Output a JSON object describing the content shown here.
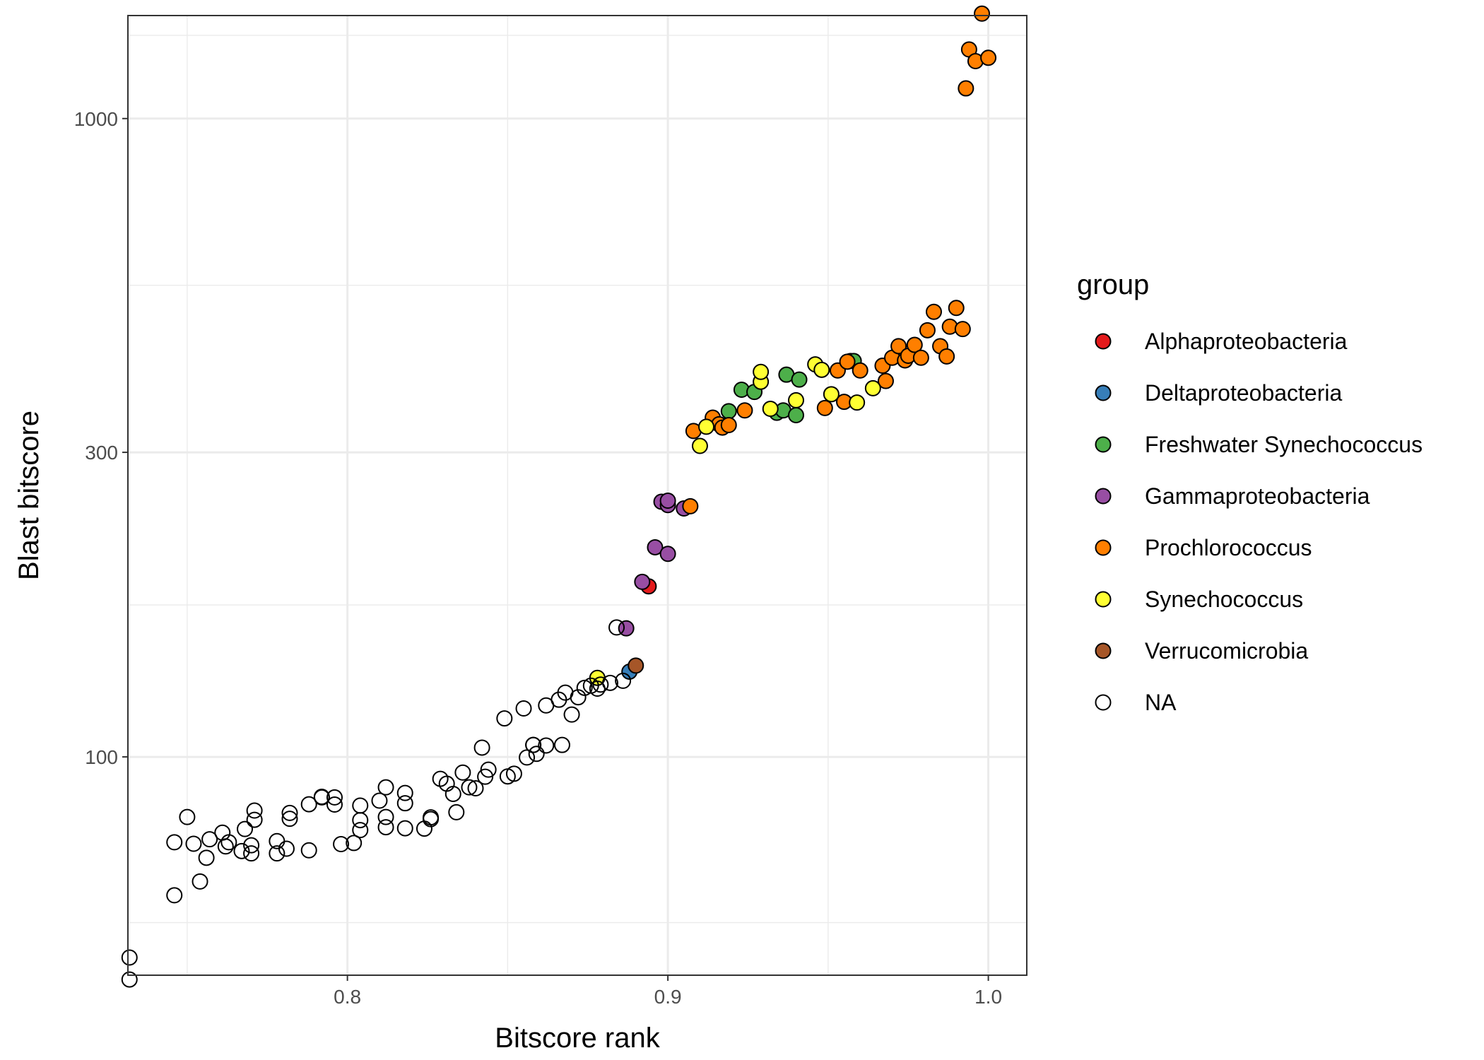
{
  "chart_data": {
    "type": "scatter",
    "title": "",
    "xlabel": "Bitscore rank",
    "ylabel": "Blast bitscore",
    "xlim": [
      0.7315,
      1.012
    ],
    "ylim": [
      45.5,
      1450
    ],
    "y_scale": "log",
    "grid": true,
    "legend_position": "right",
    "legend_title": "group",
    "x_ticks": [
      {
        "value": 0.8,
        "label": "0.8"
      },
      {
        "value": 0.9,
        "label": "0.9"
      },
      {
        "value": 1.0,
        "label": "1.0"
      }
    ],
    "y_ticks": [
      {
        "value": 100,
        "label": "100"
      },
      {
        "value": 300,
        "label": "300"
      },
      {
        "value": 1000,
        "label": "1000"
      }
    ],
    "x_minor_grid": [
      0.75,
      0.85,
      0.95
    ],
    "y_minor_grid": [
      55,
      173,
      548,
      1350
    ],
    "series": [
      {
        "name": "Alphaproteobacteria",
        "color": "#E41A1C",
        "points": [
          [
            0.894,
            185
          ]
        ]
      },
      {
        "name": "Deltaproteobacteria",
        "color": "#377EB8",
        "points": [
          [
            0.888,
            136
          ]
        ]
      },
      {
        "name": "Freshwater Synechococcus",
        "color": "#4DAF4A",
        "points": [
          [
            0.919,
            348
          ],
          [
            0.923,
            376
          ],
          [
            0.927,
            373
          ],
          [
            0.934,
            346
          ],
          [
            0.936,
            349
          ],
          [
            0.937,
            397
          ],
          [
            0.94,
            343
          ],
          [
            0.941,
            390
          ],
          [
            0.957,
            417
          ],
          [
            0.958,
            417
          ]
        ]
      },
      {
        "name": "Gammaproteobacteria",
        "color": "#984EA3",
        "points": [
          [
            0.892,
            188
          ],
          [
            0.896,
            213
          ],
          [
            0.898,
            251
          ],
          [
            0.9,
            208
          ],
          [
            0.9,
            248
          ],
          [
            0.9,
            252
          ],
          [
            0.905,
            245
          ],
          [
            0.887,
            159
          ]
        ]
      },
      {
        "name": "Prochlorococcus",
        "color": "#FF7F00",
        "points": [
          [
            0.907,
            247
          ],
          [
            0.908,
            324
          ],
          [
            0.914,
            340
          ],
          [
            0.916,
            332
          ],
          [
            0.917,
            328
          ],
          [
            0.919,
            331
          ],
          [
            0.924,
            349
          ],
          [
            0.949,
            352
          ],
          [
            0.953,
            403
          ],
          [
            0.955,
            360
          ],
          [
            0.956,
            416
          ],
          [
            0.96,
            403
          ],
          [
            0.967,
            410
          ],
          [
            0.968,
            388
          ],
          [
            0.97,
            422
          ],
          [
            0.972,
            440
          ],
          [
            0.974,
            418
          ],
          [
            0.975,
            425
          ],
          [
            0.977,
            442
          ],
          [
            0.979,
            422
          ],
          [
            0.981,
            466
          ],
          [
            0.983,
            498
          ],
          [
            0.985,
            440
          ],
          [
            0.987,
            424
          ],
          [
            0.988,
            472
          ],
          [
            0.99,
            505
          ],
          [
            0.992,
            468
          ],
          [
            0.993,
            1115
          ],
          [
            0.994,
            1283
          ],
          [
            0.996,
            1230
          ],
          [
            0.998,
            1460
          ],
          [
            1.0,
            1245
          ]
        ]
      },
      {
        "name": "Synechococcus",
        "color": "#FFFF33",
        "points": [
          [
            0.878,
            133
          ],
          [
            0.91,
            307
          ],
          [
            0.912,
            329
          ],
          [
            0.929,
            387
          ],
          [
            0.929,
            401
          ],
          [
            0.932,
            351
          ],
          [
            0.94,
            362
          ],
          [
            0.946,
            412
          ],
          [
            0.948,
            404
          ],
          [
            0.951,
            370
          ],
          [
            0.959,
            359
          ],
          [
            0.964,
            378
          ]
        ]
      },
      {
        "name": "Verrucomicrobia",
        "color": "#A65628",
        "points": [
          [
            0.89,
            139
          ]
        ]
      },
      {
        "name": "NA",
        "color": null,
        "points": [
          [
            0.732,
            48.5
          ],
          [
            0.732,
            44.8
          ],
          [
            0.746,
            60.7
          ],
          [
            0.746,
            73.5
          ],
          [
            0.75,
            80.5
          ],
          [
            0.752,
            73.1
          ],
          [
            0.754,
            63.8
          ],
          [
            0.756,
            69.5
          ],
          [
            0.757,
            74.3
          ],
          [
            0.761,
            76.1
          ],
          [
            0.762,
            72.4
          ],
          [
            0.763,
            73.5
          ],
          [
            0.767,
            71.2
          ],
          [
            0.768,
            77.1
          ],
          [
            0.77,
            70.6
          ],
          [
            0.77,
            72.7
          ],
          [
            0.771,
            79.7
          ],
          [
            0.771,
            82.4
          ],
          [
            0.778,
            70.6
          ],
          [
            0.778,
            73.8
          ],
          [
            0.781,
            71.8
          ],
          [
            0.782,
            80.0
          ],
          [
            0.782,
            81.7
          ],
          [
            0.788,
            71.4
          ],
          [
            0.788,
            84.3
          ],
          [
            0.792,
            86.4
          ],
          [
            0.792,
            86.6
          ],
          [
            0.796,
            84.2
          ],
          [
            0.796,
            86.4
          ],
          [
            0.798,
            73.0
          ],
          [
            0.802,
            73.3
          ],
          [
            0.804,
            76.8
          ],
          [
            0.804,
            79.6
          ],
          [
            0.804,
            83.9
          ],
          [
            0.81,
            85.4
          ],
          [
            0.812,
            77.6
          ],
          [
            0.812,
            80.5
          ],
          [
            0.812,
            89.6
          ],
          [
            0.818,
            77.3
          ],
          [
            0.818,
            84.6
          ],
          [
            0.818,
            87.8
          ],
          [
            0.824,
            77.2
          ],
          [
            0.826,
            79.9
          ],
          [
            0.826,
            80.4
          ],
          [
            0.829,
            92.4
          ],
          [
            0.831,
            90.8
          ],
          [
            0.833,
            87.5
          ],
          [
            0.834,
            81.9
          ],
          [
            0.836,
            94.5
          ],
          [
            0.838,
            89.6
          ],
          [
            0.84,
            89.3
          ],
          [
            0.842,
            103.4
          ],
          [
            0.843,
            93.1
          ],
          [
            0.844,
            95.5
          ],
          [
            0.849,
            114.9
          ],
          [
            0.85,
            93.2
          ],
          [
            0.852,
            94.1
          ],
          [
            0.855,
            119.1
          ],
          [
            0.856,
            99.8
          ],
          [
            0.858,
            104.4
          ],
          [
            0.858,
            104.4
          ],
          [
            0.859,
            101.1
          ],
          [
            0.862,
            104.2
          ],
          [
            0.862,
            120.4
          ],
          [
            0.866,
            122.9
          ],
          [
            0.867,
            104.4
          ],
          [
            0.868,
            126.1
          ],
          [
            0.87,
            116.5
          ],
          [
            0.872,
            124.0
          ],
          [
            0.874,
            128.3
          ],
          [
            0.876,
            129.3
          ],
          [
            0.878,
            127.9
          ],
          [
            0.879,
            129.8
          ],
          [
            0.882,
            130.6
          ],
          [
            0.884,
            159.5
          ],
          [
            0.886,
            131.6
          ]
        ]
      }
    ]
  }
}
